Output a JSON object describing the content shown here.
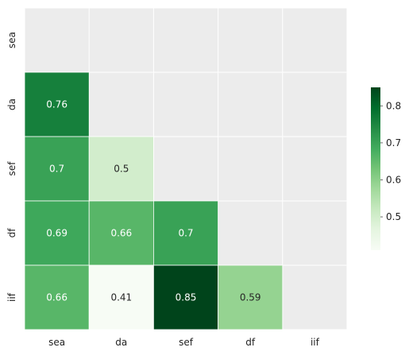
{
  "chart_data": {
    "type": "heatmap",
    "x_categories": [
      "sea",
      "da",
      "sef",
      "df",
      "iif"
    ],
    "y_categories": [
      "sea",
      "da",
      "sef",
      "df",
      "iif"
    ],
    "cells": [
      {
        "row": "da",
        "col": "sea",
        "value": 0.76,
        "label": "0.76"
      },
      {
        "row": "sef",
        "col": "sea",
        "value": 0.7,
        "label": "0.7"
      },
      {
        "row": "sef",
        "col": "da",
        "value": 0.5,
        "label": "0.5"
      },
      {
        "row": "df",
        "col": "sea",
        "value": 0.69,
        "label": "0.69"
      },
      {
        "row": "df",
        "col": "da",
        "value": 0.66,
        "label": "0.66"
      },
      {
        "row": "df",
        "col": "sef",
        "value": 0.7,
        "label": "0.7"
      },
      {
        "row": "iif",
        "col": "sea",
        "value": 0.66,
        "label": "0.66"
      },
      {
        "row": "iif",
        "col": "da",
        "value": 0.41,
        "label": "0.41"
      },
      {
        "row": "iif",
        "col": "sef",
        "value": 0.85,
        "label": "0.85"
      },
      {
        "row": "iif",
        "col": "df",
        "value": 0.59,
        "label": "0.59"
      }
    ],
    "mask": "upper-triangle-and-diagonal",
    "colormap": "Greens",
    "colorbar": {
      "vmin": 0.41,
      "vmax": 0.85,
      "ticks": [
        0.5,
        0.6,
        0.7,
        0.8
      ],
      "tick_labels": [
        "0.5",
        "0.6",
        "0.7",
        "0.8"
      ]
    },
    "masked_color": "#ececec",
    "title": "",
    "xlabel": "",
    "ylabel": ""
  }
}
